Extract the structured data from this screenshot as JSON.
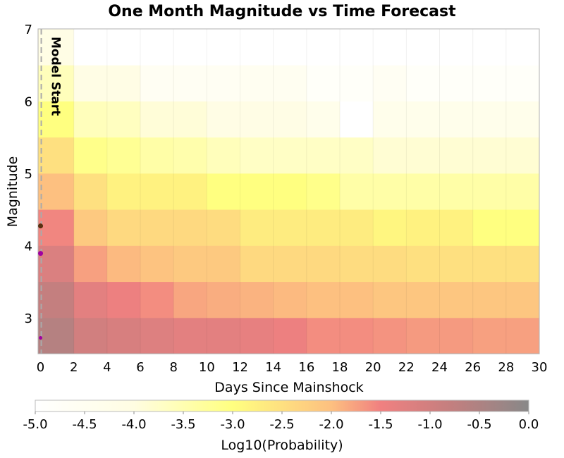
{
  "chart_data": {
    "type": "heatmap",
    "title": "One Month Magnitude vs Time Forecast",
    "xlabel": "Days Since Mainshock",
    "ylabel": "Magnitude",
    "xlim": [
      0,
      30
    ],
    "ylim": [
      2.5,
      7
    ],
    "x_bin_edges": [
      0,
      2,
      4,
      6,
      8,
      10,
      12,
      14,
      16,
      18,
      20,
      22,
      24,
      26,
      28,
      30
    ],
    "y_bin_edges": [
      2.5,
      3.0,
      3.5,
      4.0,
      4.5,
      5.0,
      5.5,
      6.0,
      6.5,
      7.0
    ],
    "x_ticks": [
      "0",
      "2",
      "4",
      "6",
      "8",
      "10",
      "12",
      "14",
      "16",
      "18",
      "20",
      "22",
      "24",
      "26",
      "28",
      "30"
    ],
    "y_ticks": [
      "3",
      "4",
      "5",
      "6",
      "7"
    ],
    "grid": true,
    "values_log10_probability": [
      [
        -0.6,
        -1.0,
        -1.1,
        -1.2,
        -1.3,
        -1.3,
        -1.35,
        -1.45,
        -1.6,
        -1.6,
        -1.65,
        -1.7,
        -1.7,
        -1.75,
        -1.75
      ],
      [
        -0.8,
        -1.3,
        -1.45,
        -1.6,
        -1.8,
        -1.85,
        -1.9,
        -1.95,
        -2.0,
        -2.0,
        -2.1,
        -2.1,
        -2.1,
        -2.1,
        -2.1
      ],
      [
        -1.15,
        -1.75,
        -1.95,
        -2.05,
        -2.15,
        -2.15,
        -2.4,
        -2.4,
        -2.4,
        -2.45,
        -2.45,
        -2.5,
        -2.5,
        -2.5,
        -2.5
      ],
      [
        -1.55,
        -2.15,
        -2.4,
        -2.4,
        -2.4,
        -2.45,
        -2.7,
        -2.7,
        -2.7,
        -2.7,
        -2.85,
        -2.8,
        -2.8,
        -3.0,
        -3.0
      ],
      [
        -2.0,
        -2.5,
        -2.8,
        -2.8,
        -2.8,
        -3.0,
        -3.0,
        -3.0,
        -3.1,
        -3.4,
        -3.4,
        -3.4,
        -3.4,
        -3.4,
        -3.4
      ],
      [
        -2.5,
        -3.1,
        -3.2,
        -3.4,
        -3.45,
        -3.6,
        -3.7,
        -3.7,
        -3.7,
        -3.7,
        -3.85,
        -3.85,
        -3.85,
        -3.85,
        -3.85
      ],
      [
        -3.0,
        -3.6,
        -3.65,
        -3.9,
        -3.9,
        -4.1,
        -4.1,
        -4.1,
        -4.3,
        -5.0,
        -4.3,
        -4.3,
        -4.3,
        -4.3,
        -4.3
      ],
      [
        -3.6,
        -4.1,
        -4.1,
        -4.6,
        -4.6,
        -4.6,
        -4.5,
        -4.5,
        -4.8,
        -4.8,
        -4.6,
        -4.8,
        -4.8,
        -4.8,
        -4.8
      ],
      [
        -4.1,
        -5.0,
        -5.0,
        -5.0,
        -5.0,
        -5.0,
        -5.0,
        -5.0,
        -5.0,
        -5.0,
        -5.0,
        -5.0,
        -5.0,
        -5.0,
        -5.0
      ]
    ],
    "colorbar": {
      "label": "Log10(Probability)",
      "range": [
        -5.0,
        0.0
      ],
      "ticks": [
        "-5.0",
        "-4.5",
        "-4.0",
        "-3.5",
        "-3.0",
        "-2.5",
        "-2.0",
        "-1.5",
        "-1.0",
        "-0.5",
        "0.0"
      ],
      "colorscale": [
        [
          -5.0,
          "#ffffff"
        ],
        [
          -4.0,
          "#fffde2"
        ],
        [
          -3.0,
          "#ffff80"
        ],
        [
          -2.0,
          "#fdc080"
        ],
        [
          -1.5,
          "#f08080"
        ],
        [
          -0.8,
          "#c47f7f"
        ],
        [
          0.0,
          "#888888"
        ]
      ]
    },
    "annotations": [
      {
        "text": "Model Start",
        "x": 0
      }
    ],
    "events": [
      {
        "day": 0,
        "magnitude": 4.27,
        "color": "#5a3010"
      },
      {
        "day": 0,
        "magnitude": 3.89,
        "color": "#a000a0"
      },
      {
        "day": 0,
        "magnitude": 2.72,
        "color": "#a000a0"
      }
    ]
  }
}
